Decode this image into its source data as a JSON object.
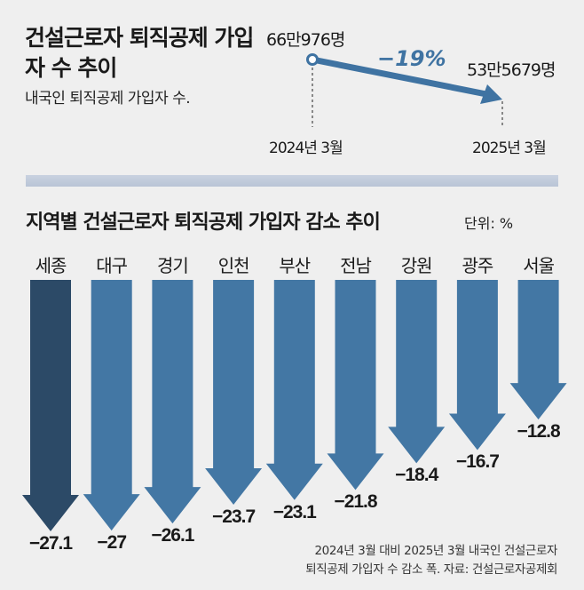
{
  "top": {
    "title": "건설근로자 퇴직공제 가입자 수 추이",
    "subtitle": "내국인 퇴직공제 가입자 수.",
    "start_value": "66만976명",
    "end_value": "53만5679명",
    "change": "−19%",
    "start_label": "2024년 3월",
    "end_label": "2025년 3월"
  },
  "chart_data": {
    "type": "bar",
    "title": "지역별 건설근로자 퇴직공제 가입자 감소 추이",
    "unit": "단위: %",
    "categories": [
      "세종",
      "대구",
      "경기",
      "인천",
      "부산",
      "전남",
      "강원",
      "광주",
      "서울"
    ],
    "values": [
      -27.1,
      -27,
      -26.1,
      -23.7,
      -23.1,
      -21.8,
      -18.4,
      -16.7,
      -12.8
    ],
    "value_labels": [
      "−27.1",
      "−27",
      "−26.1",
      "−23.7",
      "−23.1",
      "−21.8",
      "−18.4",
      "−16.7",
      "−12.8"
    ],
    "highlight_index": 0,
    "colors": {
      "highlight": "#2c4a67",
      "bar": "#4377a4",
      "top_arrow": "#3f73a2"
    }
  },
  "note": [
    "2024년 3월 대비 2025년 3월 내국인 건설근로자",
    "퇴직공제 가입자 수 감소 폭. 자료: 건설근로자공제회"
  ]
}
